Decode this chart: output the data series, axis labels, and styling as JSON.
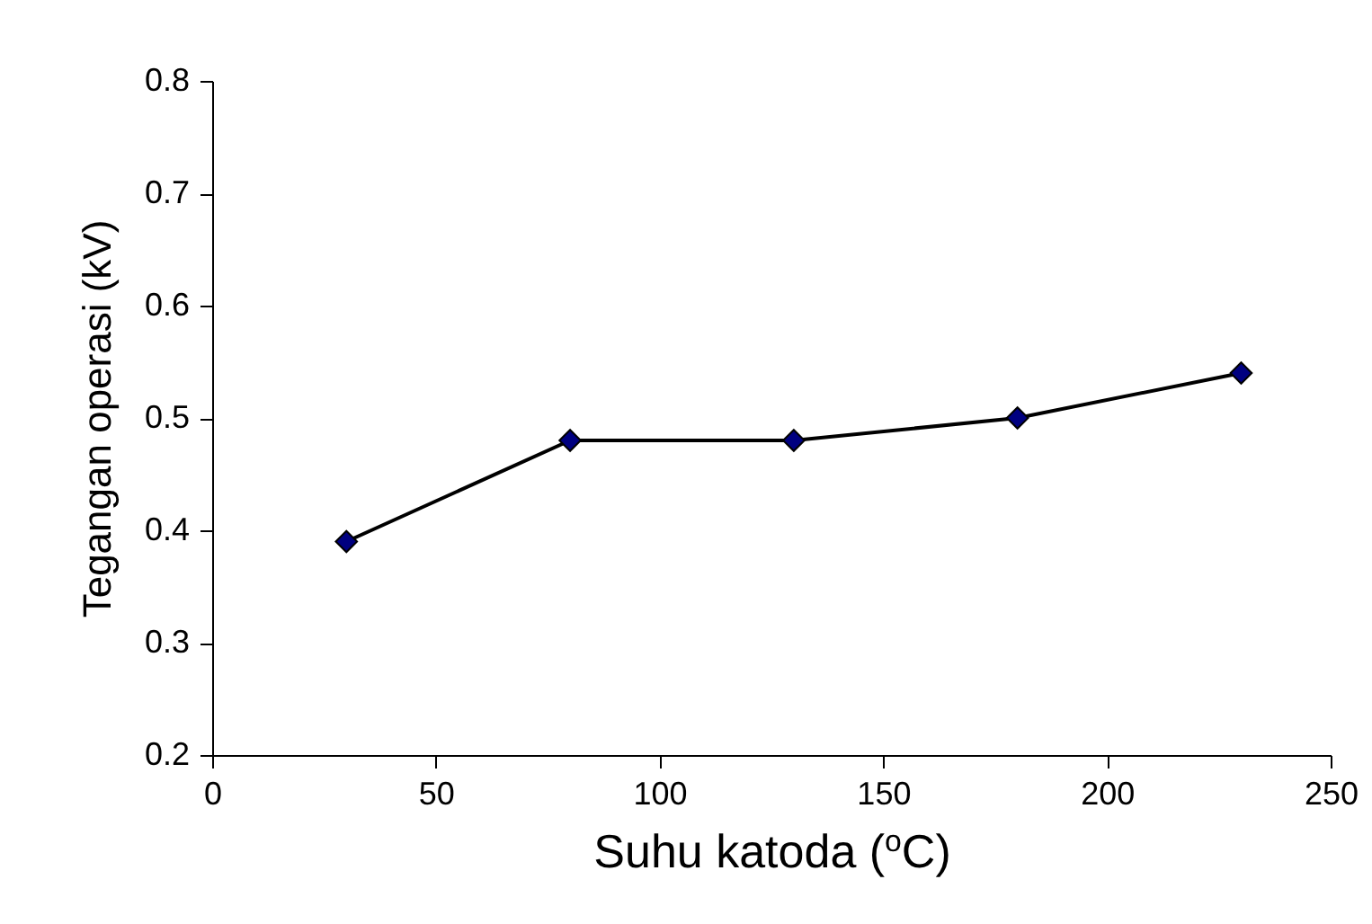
{
  "chart_data": {
    "type": "line",
    "xlabel": "Suhu katoda ($^{o}$C)",
    "ylabel": "Tegangan operasi (kV)",
    "x": [
      30,
      80,
      130,
      180,
      230
    ],
    "series": [
      {
        "color": "#000080",
        "values": [
          0.39,
          0.48,
          0.48,
          0.5,
          0.54
        ]
      }
    ],
    "xlim": [
      0,
      250
    ],
    "xticks": [
      0,
      50,
      100,
      150,
      200,
      250
    ],
    "ylim": [
      0.2,
      0.8
    ],
    "yticks": [
      0.2,
      0.3,
      0.4,
      0.5,
      0.6,
      0.7,
      0.8
    ],
    "grid": false,
    "marker": "diamond",
    "line_style": "solid"
  }
}
